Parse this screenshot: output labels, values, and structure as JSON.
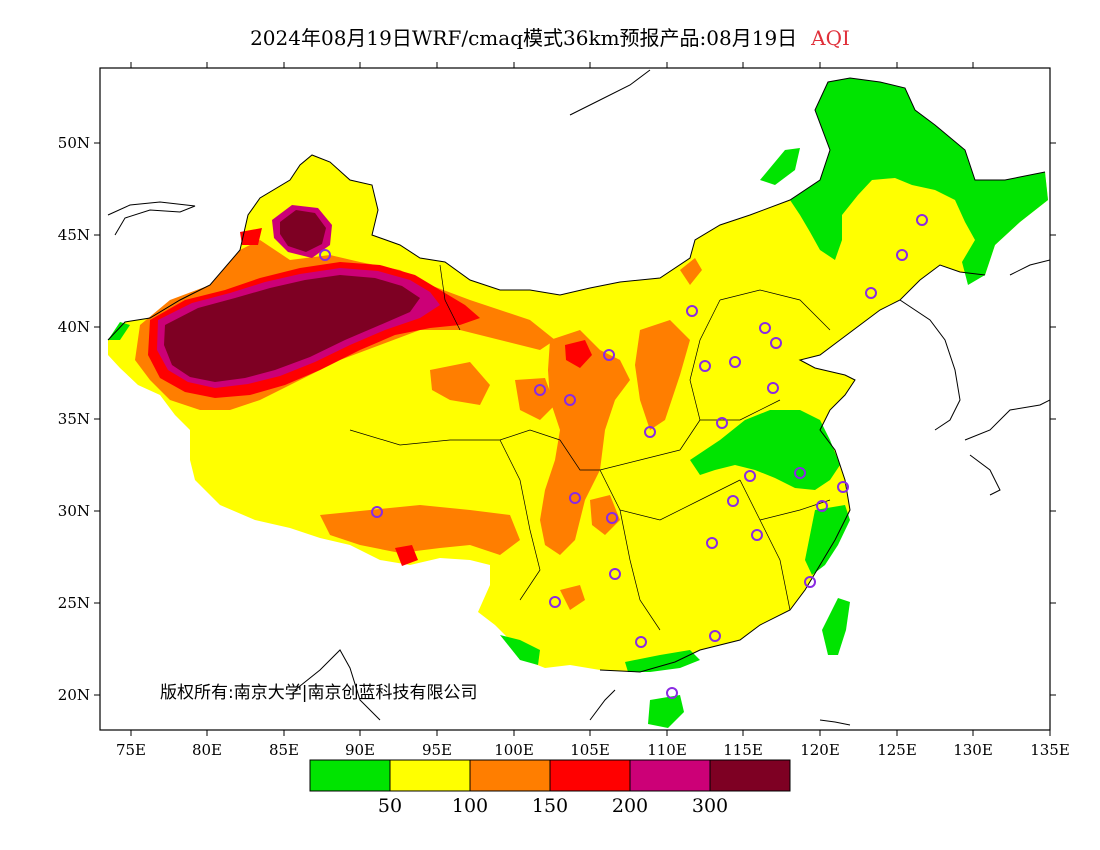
{
  "title": {
    "text": "2024年08月19日WRF/cmaq模式36km预报产品:08月19日",
    "variable": "AQI"
  },
  "copyright": "版权所有:南京大学|南京创蓝科技有限公司",
  "lat_ticks": [
    "50N",
    "45N",
    "40N",
    "35N",
    "30N",
    "25N",
    "20N"
  ],
  "lon_ticks": [
    "75E",
    "80E",
    "85E",
    "90E",
    "95E",
    "100E",
    "105E",
    "110E",
    "115E",
    "120E",
    "125E",
    "130E",
    "135E"
  ],
  "legend": {
    "thresholds": [
      "50",
      "100",
      "150",
      "200",
      "300"
    ],
    "colors": [
      "#00e400",
      "#ffff00",
      "#ff7e00",
      "#ff0000",
      "#cc0077",
      "#7e0023"
    ]
  },
  "colors": {
    "good": "#00e400",
    "moderate": "#ffff00",
    "usg": "#ff7e00",
    "unhealthy": "#ff0000",
    "very_unhealthy": "#cc0077",
    "hazardous": "#7e0023",
    "station_marker": "#8a2be2"
  }
}
